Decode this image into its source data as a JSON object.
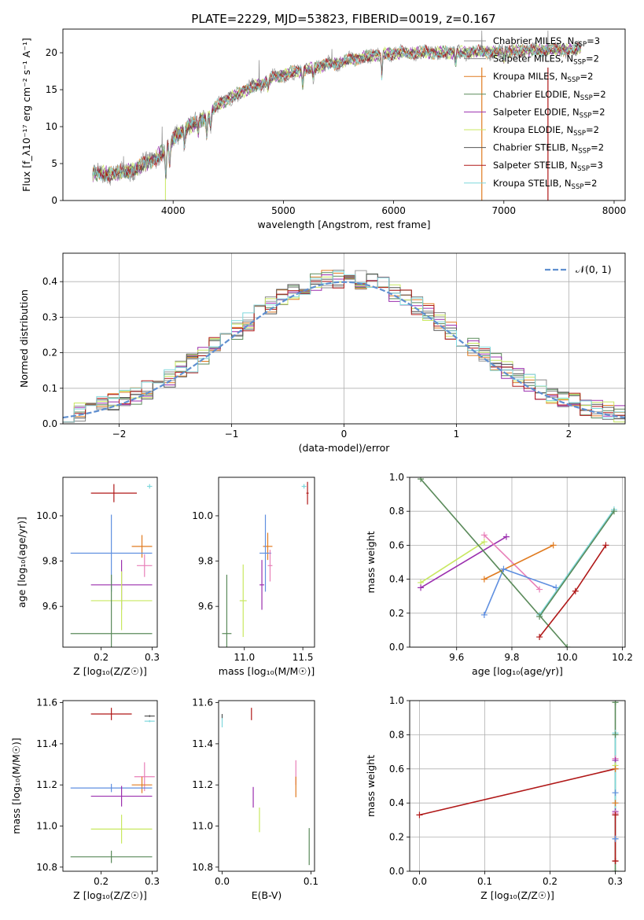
{
  "colors": {
    "chabrier_miles": "#999999",
    "salpeter_miles": "#888888",
    "kroupa_miles": "#e07b20",
    "chabrier_elodie": "#5a8a5a",
    "salpeter_elodie": "#9b2fae",
    "kroupa_elodie": "#c8e860",
    "chabrier_stelib": "#555555",
    "salpeter_stelib": "#b01818",
    "kroupa_stelib": "#7fd8dc",
    "pink": "#e87fb8",
    "blue": "#5f8fe0",
    "normal": "#5f8fd0",
    "grid": "#b0b0b0"
  },
  "chart_data": [
    {
      "id": "spectrum",
      "type": "line",
      "title": "PLATE=2229, MJD=53823, FIBERID=0019, z=0.167",
      "xlabel": "wavelength [Angstrom, rest frame]",
      "ylabel": "Flux [f_λ10⁻¹⁷ erg cm⁻² s⁻¹ A⁻¹]",
      "xlim": [
        3000,
        8100
      ],
      "ylim": [
        0,
        23.2
      ],
      "xticks": [
        4000,
        5000,
        6000,
        7000,
        8000
      ],
      "yticks": [
        0,
        5,
        10,
        15,
        20
      ],
      "grid": false,
      "legend": "top-right",
      "series": [
        {
          "name": "Chabrier MILES, N_SSP=3",
          "key": "chabrier_miles"
        },
        {
          "name": "Salpeter MILES, N_SSP=2",
          "key": "salpeter_miles"
        },
        {
          "name": "Kroupa MILES, N_SSP=2",
          "key": "kroupa_miles"
        },
        {
          "name": "Chabrier ELODIE, N_SSP=2",
          "key": "chabrier_elodie"
        },
        {
          "name": "Salpeter ELODIE, N_SSP=2",
          "key": "salpeter_elodie"
        },
        {
          "name": "Kroupa ELODIE, N_SSP=2",
          "key": "kroupa_elodie"
        },
        {
          "name": "Chabrier STELIB, N_SSP=2",
          "key": "chabrier_stelib"
        },
        {
          "name": "Salpeter STELIB, N_SSP=3",
          "key": "salpeter_stelib"
        },
        {
          "name": "Kroupa STELIB, N_SSP=2",
          "key": "kroupa_stelib"
        }
      ],
      "continuum": [
        [
          3270,
          3.7
        ],
        [
          3400,
          3.6
        ],
        [
          3500,
          3.7
        ],
        [
          3600,
          4.0
        ],
        [
          3700,
          4.6
        ],
        [
          3800,
          5.3
        ],
        [
          3900,
          6.4
        ],
        [
          4000,
          8.2
        ],
        [
          4100,
          9.8
        ],
        [
          4200,
          10.5
        ],
        [
          4300,
          11.3
        ],
        [
          4400,
          12.8
        ],
        [
          4500,
          13.7
        ],
        [
          4600,
          14.6
        ],
        [
          4700,
          15.2
        ],
        [
          4800,
          15.8
        ],
        [
          4900,
          16.6
        ],
        [
          5000,
          17.0
        ],
        [
          5200,
          17.7
        ],
        [
          5400,
          18.4
        ],
        [
          5600,
          19.0
        ],
        [
          5800,
          19.6
        ],
        [
          6000,
          19.9
        ],
        [
          6200,
          20.0
        ],
        [
          6400,
          20.0
        ],
        [
          6600,
          20.1
        ],
        [
          6800,
          20.1
        ],
        [
          7000,
          20.2
        ],
        [
          7200,
          20.3
        ],
        [
          7400,
          20.4
        ],
        [
          7600,
          20.4
        ],
        [
          7700,
          20.5
        ]
      ],
      "dips": [
        [
          3934,
          3.6
        ],
        [
          3969,
          3.0
        ],
        [
          4102,
          2.0
        ],
        [
          4227,
          1.5
        ],
        [
          4305,
          2.5
        ],
        [
          4340,
          1.8
        ],
        [
          4861,
          1.2
        ],
        [
          5175,
          2.0
        ],
        [
          5270,
          1.2
        ],
        [
          5893,
          2.8
        ],
        [
          6563,
          1.5
        ],
        [
          7000,
          1.0
        ]
      ],
      "spikes": [
        [
          3550,
          6.0
        ],
        [
          3900,
          10.0
        ],
        [
          4780,
          19.0
        ],
        [
          5440,
          20.5
        ],
        [
          6800,
          23.0
        ],
        [
          7400,
          23.0
        ]
      ]
    },
    {
      "id": "residual-histogram",
      "type": "bar",
      "xlabel": "(data-model)/error",
      "ylabel": "Normed distribution",
      "xlim": [
        -2.5,
        2.5
      ],
      "ylim": [
        0,
        0.48
      ],
      "xticks": [
        -2,
        -1,
        0,
        1,
        2
      ],
      "yticks": [
        0.0,
        0.1,
        0.2,
        0.3,
        0.4
      ],
      "grid": true,
      "legend": "top-right",
      "normal_label": "𝒩(0, 1)",
      "bin_width": 0.1
    },
    {
      "id": "age-vs-z",
      "type": "scatter",
      "xlabel": "Z [log₁₀(Z/Z☉)]",
      "ylabel": "age  [log₁₀(age/yr)]",
      "xlim": [
        0.125,
        0.31
      ],
      "ylim": [
        9.42,
        10.17
      ],
      "xticks": [
        0.2,
        0.3
      ],
      "yticks": [
        9.6,
        9.8,
        10.0
      ],
      "points": [
        {
          "key": "salpeter_stelib",
          "x": 0.225,
          "y": 10.1,
          "xerr": 0.045,
          "yerr": 0.04
        },
        {
          "key": "kroupa_stelib",
          "x": 0.295,
          "y": 10.13,
          "xerr": 0.005,
          "yerr": 0.01
        },
        {
          "key": "kroupa_miles",
          "x": 0.28,
          "y": 9.865,
          "xerr": 0.02,
          "yerr": 0.05
        },
        {
          "key": "blue",
          "x": 0.22,
          "y": 9.835,
          "xerr": 0.08,
          "yerr": 0.17
        },
        {
          "key": "pink",
          "x": 0.285,
          "y": 9.78,
          "xerr": 0.015,
          "yerr": 0.05
        },
        {
          "key": "salpeter_elodie",
          "x": 0.24,
          "y": 9.695,
          "xerr": 0.06,
          "yerr": 0.11
        },
        {
          "key": "kroupa_elodie",
          "x": 0.24,
          "y": 9.625,
          "xerr": 0.06,
          "yerr": 0.13
        },
        {
          "key": "chabrier_elodie",
          "x": 0.22,
          "y": 9.48,
          "xerr": 0.08,
          "yerr": 0.26
        }
      ]
    },
    {
      "id": "age-vs-mass",
      "type": "scatter",
      "xlabel": "mass [log₁₀(M/M☉)]",
      "ylabel": "",
      "xlim": [
        10.78,
        11.6
      ],
      "ylim": [
        9.42,
        10.17
      ],
      "xticks": [
        11.0,
        11.5
      ],
      "yticks": [
        9.6,
        9.8,
        10.0
      ],
      "points": [
        {
          "key": "salpeter_stelib",
          "x": 11.54,
          "y": 10.1,
          "xerr": 0.01,
          "yerr": 0.05
        },
        {
          "key": "kroupa_stelib",
          "x": 11.51,
          "y": 10.13,
          "xerr": 0.02,
          "yerr": 0.01
        },
        {
          "key": "kroupa_miles",
          "x": 11.2,
          "y": 9.865,
          "xerr": 0.04,
          "yerr": 0.06
        },
        {
          "key": "blue",
          "x": 11.18,
          "y": 9.835,
          "xerr": 0.05,
          "yerr": 0.17
        },
        {
          "key": "pink",
          "x": 11.22,
          "y": 9.78,
          "xerr": 0.02,
          "yerr": 0.07
        },
        {
          "key": "salpeter_elodie",
          "x": 11.15,
          "y": 9.695,
          "xerr": 0.02,
          "yerr": 0.11
        },
        {
          "key": "kroupa_elodie",
          "x": 10.99,
          "y": 9.625,
          "xerr": 0.03,
          "yerr": 0.16
        },
        {
          "key": "chabrier_elodie",
          "x": 10.85,
          "y": 9.48,
          "xerr": 0.04,
          "yerr": 0.26
        }
      ]
    },
    {
      "id": "weight-vs-age",
      "type": "line",
      "xlabel": "age  [log₁₀(age/yr)]",
      "ylabel": "mass weight",
      "xlim": [
        9.43,
        10.21
      ],
      "ylim": [
        0.0,
        1.0
      ],
      "xticks": [
        9.6,
        9.8,
        10.0,
        10.2
      ],
      "yticks": [
        0.0,
        0.2,
        0.4,
        0.6,
        0.8,
        1.0
      ],
      "grid": true,
      "series": [
        {
          "key": "kroupa_elodie",
          "x": [
            9.47,
            9.7
          ],
          "y": [
            0.38,
            0.62
          ]
        },
        {
          "key": "salpeter_elodie",
          "x": [
            9.47,
            9.78
          ],
          "y": [
            0.35,
            0.65
          ]
        },
        {
          "key": "pink",
          "x": [
            9.7,
            9.9
          ],
          "y": [
            0.66,
            0.34
          ]
        },
        {
          "key": "kroupa_miles",
          "x": [
            9.7,
            9.95
          ],
          "y": [
            0.4,
            0.6
          ]
        },
        {
          "key": "blue",
          "x": [
            9.7,
            9.77,
            9.96
          ],
          "y": [
            0.19,
            0.46,
            0.35
          ]
        },
        {
          "key": "chabrier_elodie",
          "x": [
            9.47,
            10.0
          ],
          "y": [
            0.99,
            0.0
          ]
        },
        {
          "key": "kroupa_stelib",
          "x": [
            9.9,
            10.17
          ],
          "y": [
            0.19,
            0.81
          ]
        },
        {
          "key": "chabrier_elodie",
          "x": [
            9.9,
            10.17
          ],
          "y": [
            0.18,
            0.8
          ]
        },
        {
          "key": "salpeter_stelib",
          "x": [
            9.9,
            10.03,
            10.14
          ],
          "y": [
            0.06,
            0.33,
            0.6
          ]
        }
      ]
    },
    {
      "id": "mass-vs-z",
      "type": "scatter",
      "xlabel": "Z [log₁₀(Z/Z☉)]",
      "ylabel": "mass [log₁₀(M/M☉)]",
      "xlim": [
        0.125,
        0.31
      ],
      "ylim": [
        10.78,
        11.61
      ],
      "xticks": [
        0.2,
        0.3
      ],
      "yticks": [
        10.8,
        11.0,
        11.2,
        11.4,
        11.6
      ],
      "points": [
        {
          "key": "salpeter_stelib",
          "x": 0.22,
          "y": 11.545,
          "xerr": 0.04,
          "yerr": 0.03
        },
        {
          "key": "chabrier_stelib",
          "x": 0.295,
          "y": 11.535,
          "xerr": 0.01,
          "yerr": 0.005
        },
        {
          "key": "kroupa_stelib",
          "x": 0.295,
          "y": 11.51,
          "xerr": 0.01,
          "yerr": 0.005
        },
        {
          "key": "pink",
          "x": 0.285,
          "y": 11.24,
          "xerr": 0.02,
          "yerr": 0.07
        },
        {
          "key": "kroupa_miles",
          "x": 0.28,
          "y": 11.2,
          "xerr": 0.02,
          "yerr": 0.04
        },
        {
          "key": "blue",
          "x": 0.22,
          "y": 11.185,
          "xerr": 0.08,
          "yerr": 0.02
        },
        {
          "key": "salpeter_elodie",
          "x": 0.24,
          "y": 11.145,
          "xerr": 0.06,
          "yerr": 0.05
        },
        {
          "key": "kroupa_elodie",
          "x": 0.24,
          "y": 10.985,
          "xerr": 0.06,
          "yerr": 0.07
        },
        {
          "key": "chabrier_elodie",
          "x": 0.22,
          "y": 10.85,
          "xerr": 0.08,
          "yerr": 0.03
        }
      ]
    },
    {
      "id": "mass-vs-ebv",
      "type": "scatter",
      "xlabel": "E(B-V)",
      "ylabel": "",
      "xlim": [
        -0.004,
        0.104
      ],
      "ylim": [
        10.78,
        11.61
      ],
      "xticks": [
        0.0,
        0.1
      ],
      "yticks": [
        10.8,
        11.0,
        11.2,
        11.4,
        11.6
      ],
      "points": [
        {
          "key": "salpeter_stelib",
          "x": 0.033,
          "y": 11.545,
          "xerr": 0,
          "yerr": 0.03
        },
        {
          "key": "kroupa_stelib",
          "x": 0.0,
          "y": 11.51,
          "xerr": 0,
          "yerr": 0.03
        },
        {
          "key": "chabrier_stelib",
          "x": 0.0,
          "y": 11.535,
          "xerr": 0,
          "yerr": 0.01
        },
        {
          "key": "pink",
          "x": 0.083,
          "y": 11.26,
          "xerr": 0,
          "yerr": 0.06
        },
        {
          "key": "kroupa_miles",
          "x": 0.083,
          "y": 11.19,
          "xerr": 0,
          "yerr": 0.05
        },
        {
          "key": "salpeter_elodie",
          "x": 0.035,
          "y": 11.14,
          "xerr": 0,
          "yerr": 0.05
        },
        {
          "key": "kroupa_elodie",
          "x": 0.042,
          "y": 11.03,
          "xerr": 0,
          "yerr": 0.06
        },
        {
          "key": "chabrier_elodie",
          "x": 0.098,
          "y": 10.9,
          "xerr": 0,
          "yerr": 0.09
        }
      ]
    },
    {
      "id": "weight-vs-z",
      "type": "line",
      "xlabel": "Z [log₁₀(Z/Z☉)]",
      "ylabel": "mass weight",
      "xlim": [
        -0.015,
        0.315
      ],
      "ylim": [
        0.0,
        1.0
      ],
      "xticks": [
        0.0,
        0.1,
        0.2,
        0.3
      ],
      "yticks": [
        0.0,
        0.2,
        0.4,
        0.6,
        0.8,
        1.0
      ],
      "grid": true,
      "series": [
        {
          "key": "salpeter_stelib",
          "x": [
            0.0,
            0.3
          ],
          "y": [
            0.33,
            0.6
          ]
        },
        {
          "key": "chabrier_elodie",
          "x": [
            0.3,
            0.3
          ],
          "y": [
            0.0,
            0.99
          ]
        },
        {
          "key": "kroupa_stelib",
          "x": [
            0.3,
            0.3
          ],
          "y": [
            0.19,
            0.81
          ]
        },
        {
          "key": "salpeter_stelib",
          "x": [
            0.3,
            0.3
          ],
          "y": [
            0.06,
            0.33
          ]
        }
      ],
      "markers_x": 0.3,
      "markers": [
        {
          "key": "chabrier_elodie",
          "y": 0.99
        },
        {
          "key": "chabrier_elodie",
          "y": 0.8
        },
        {
          "key": "pink",
          "y": 0.66
        },
        {
          "key": "salpeter_elodie",
          "y": 0.65
        },
        {
          "key": "kroupa_elodie",
          "y": 0.62
        },
        {
          "key": "kroupa_miles",
          "y": 0.6
        },
        {
          "key": "blue",
          "y": 0.46
        },
        {
          "key": "kroupa_miles",
          "y": 0.4
        },
        {
          "key": "salpeter_elodie",
          "y": 0.35
        },
        {
          "key": "pink",
          "y": 0.34
        },
        {
          "key": "salpeter_stelib",
          "y": 0.33
        },
        {
          "key": "blue",
          "y": 0.19
        },
        {
          "key": "salpeter_stelib",
          "y": 0.06
        }
      ]
    }
  ]
}
